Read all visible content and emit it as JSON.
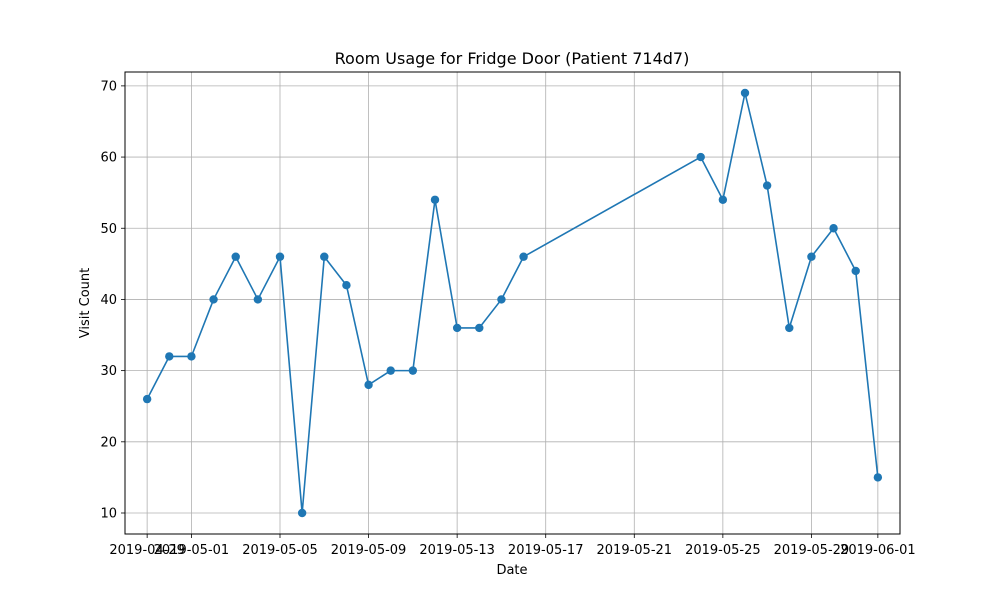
{
  "chart_data": {
    "type": "line",
    "title": "Room Usage for Fridge Door (Patient 714d7)",
    "xlabel": "Date",
    "ylabel": "Visit Count",
    "x_tick_labels": [
      "2019-04-29",
      "2019-05-01",
      "2019-05-05",
      "2019-05-09",
      "2019-05-13",
      "2019-05-17",
      "2019-05-21",
      "2019-05-25",
      "2019-05-29",
      "2019-06-01"
    ],
    "y_ticks": [
      10,
      20,
      30,
      40,
      50,
      60,
      70
    ],
    "xlim": [
      "2019-04-28",
      "2019-06-02"
    ],
    "ylim": [
      7.05,
      71.95
    ],
    "grid": true,
    "color": "#1f77b4",
    "series": [
      {
        "x": [
          "2019-04-29",
          "2019-04-30",
          "2019-05-01",
          "2019-05-02",
          "2019-05-03",
          "2019-05-04",
          "2019-05-05",
          "2019-05-06",
          "2019-05-07",
          "2019-05-08",
          "2019-05-09",
          "2019-05-10",
          "2019-05-11",
          "2019-05-12",
          "2019-05-13",
          "2019-05-14",
          "2019-05-15",
          "2019-05-16",
          "2019-05-24",
          "2019-05-25",
          "2019-05-26",
          "2019-05-27",
          "2019-05-28",
          "2019-05-29",
          "2019-05-30",
          "2019-05-31",
          "2019-06-01"
        ],
        "y": [
          26,
          32,
          32,
          40,
          46,
          40,
          46,
          10,
          46,
          42,
          28,
          30,
          30,
          54,
          36,
          36,
          40,
          46,
          60,
          54,
          69,
          56,
          36,
          46,
          50,
          44,
          15
        ]
      }
    ]
  }
}
